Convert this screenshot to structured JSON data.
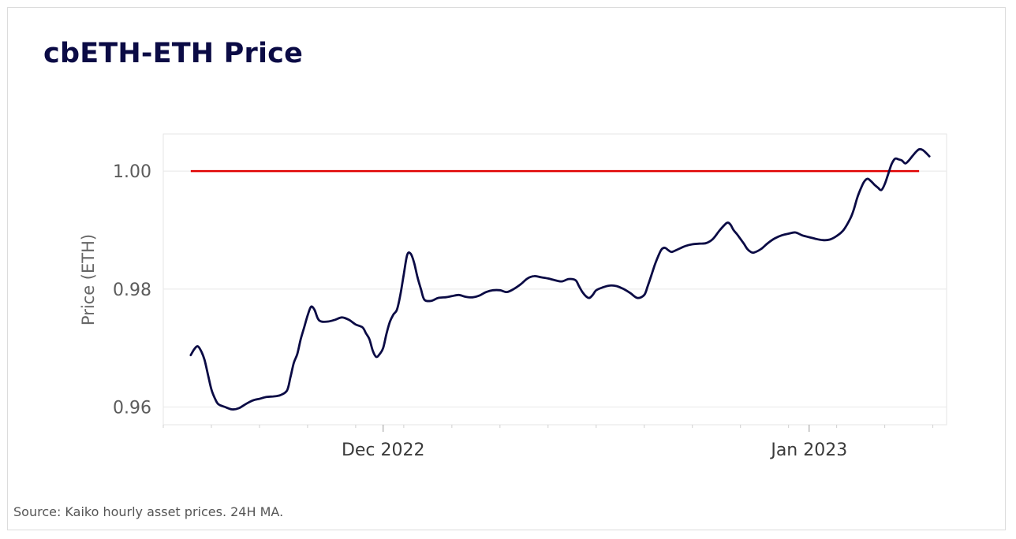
{
  "title": "cbETH-ETH Price",
  "source": "Source: Kaiko hourly asset prices. 24H MA.",
  "colors": {
    "series": "#0b0b45",
    "reference": "#e00000",
    "grid": "#e8e8e8",
    "title": "#0b0b45"
  },
  "chart_data": {
    "type": "line",
    "title": "cbETH-ETH Price",
    "xlabel": "",
    "ylabel": "Price (ETH)",
    "ylim": [
      0.957,
      1.0063
    ],
    "xlim": [
      "2022-11-15",
      "2023-01-11"
    ],
    "grid": true,
    "y_ticks": [
      {
        "value": 0.96,
        "label": "0.96"
      },
      {
        "value": 0.98,
        "label": "0.98"
      },
      {
        "value": 1.0,
        "label": "1.00"
      }
    ],
    "x_ticks": [
      {
        "date": "2022-12-01",
        "label": "Dec 2022"
      },
      {
        "date": "2023-01-01",
        "label": "Jan 2023"
      }
    ],
    "reference_line": {
      "value": 1.0,
      "x_start": "2022-11-17",
      "x_end": "2023-01-09",
      "color": "#e00000"
    },
    "series": [
      {
        "values": [
          [
            "2022-11-17T00:00",
            0.9688
          ],
          [
            "2022-11-17T06:00",
            0.9698
          ],
          [
            "2022-11-17T12:00",
            0.9703
          ],
          [
            "2022-11-17T18:00",
            0.9695
          ],
          [
            "2022-11-18T00:00",
            0.968
          ],
          [
            "2022-11-18T06:00",
            0.9655
          ],
          [
            "2022-11-18T12:00",
            0.963
          ],
          [
            "2022-11-18T18:00",
            0.9615
          ],
          [
            "2022-11-19T00:00",
            0.9605
          ],
          [
            "2022-11-19T12:00",
            0.96
          ],
          [
            "2022-11-20T00:00",
            0.9596
          ],
          [
            "2022-11-20T12:00",
            0.9598
          ],
          [
            "2022-11-21T00:00",
            0.9605
          ],
          [
            "2022-11-21T12:00",
            0.9611
          ],
          [
            "2022-11-22T00:00",
            0.9614
          ],
          [
            "2022-11-22T12:00",
            0.9617
          ],
          [
            "2022-11-23T00:00",
            0.9618
          ],
          [
            "2022-11-23T12:00",
            0.962
          ],
          [
            "2022-11-24T00:00",
            0.9628
          ],
          [
            "2022-11-24T06:00",
            0.965
          ],
          [
            "2022-11-24T12:00",
            0.9675
          ],
          [
            "2022-11-24T18:00",
            0.969
          ],
          [
            "2022-11-25T00:00",
            0.9715
          ],
          [
            "2022-11-25T06:00",
            0.9735
          ],
          [
            "2022-11-25T12:00",
            0.9755
          ],
          [
            "2022-11-25T18:00",
            0.977
          ],
          [
            "2022-11-26T00:00",
            0.9765
          ],
          [
            "2022-11-26T06:00",
            0.975
          ],
          [
            "2022-11-26T12:00",
            0.9745
          ],
          [
            "2022-11-27T00:00",
            0.9745
          ],
          [
            "2022-11-27T12:00",
            0.9748
          ],
          [
            "2022-11-28T00:00",
            0.9752
          ],
          [
            "2022-11-28T12:00",
            0.9748
          ],
          [
            "2022-11-29T00:00",
            0.974
          ],
          [
            "2022-11-29T12:00",
            0.9735
          ],
          [
            "2022-11-29T18:00",
            0.9725
          ],
          [
            "2022-11-30T00:00",
            0.9715
          ],
          [
            "2022-11-30T06:00",
            0.9695
          ],
          [
            "2022-11-30T12:00",
            0.9685
          ],
          [
            "2022-11-30T18:00",
            0.969
          ],
          [
            "2022-12-01T00:00",
            0.97
          ],
          [
            "2022-12-01T06:00",
            0.9725
          ],
          [
            "2022-12-01T12:00",
            0.9745
          ],
          [
            "2022-12-01T18:00",
            0.9757
          ],
          [
            "2022-12-02T00:00",
            0.9765
          ],
          [
            "2022-12-02T06:00",
            0.979
          ],
          [
            "2022-12-02T12:00",
            0.9825
          ],
          [
            "2022-12-02T18:00",
            0.9858
          ],
          [
            "2022-12-03T00:00",
            0.986
          ],
          [
            "2022-12-03T06:00",
            0.9845
          ],
          [
            "2022-12-03T12:00",
            0.982
          ],
          [
            "2022-12-03T18:00",
            0.98
          ],
          [
            "2022-12-04T00:00",
            0.9782
          ],
          [
            "2022-12-04T12:00",
            0.978
          ],
          [
            "2022-12-05T00:00",
            0.9785
          ],
          [
            "2022-12-05T12:00",
            0.9786
          ],
          [
            "2022-12-06T00:00",
            0.9788
          ],
          [
            "2022-12-06T12:00",
            0.979
          ],
          [
            "2022-12-07T00:00",
            0.9787
          ],
          [
            "2022-12-07T12:00",
            0.9786
          ],
          [
            "2022-12-08T00:00",
            0.9789
          ],
          [
            "2022-12-08T12:00",
            0.9795
          ],
          [
            "2022-12-09T00:00",
            0.9798
          ],
          [
            "2022-12-09T12:00",
            0.9798
          ],
          [
            "2022-12-10T00:00",
            0.9795
          ],
          [
            "2022-12-10T12:00",
            0.98
          ],
          [
            "2022-12-11T00:00",
            0.9808
          ],
          [
            "2022-12-11T12:00",
            0.9818
          ],
          [
            "2022-12-12T00:00",
            0.9822
          ],
          [
            "2022-12-12T12:00",
            0.982
          ],
          [
            "2022-12-13T00:00",
            0.9818
          ],
          [
            "2022-12-13T12:00",
            0.9815
          ],
          [
            "2022-12-14T00:00",
            0.9813
          ],
          [
            "2022-12-14T12:00",
            0.9817
          ],
          [
            "2022-12-15T00:00",
            0.9815
          ],
          [
            "2022-12-15T06:00",
            0.9805
          ],
          [
            "2022-12-15T12:00",
            0.9795
          ],
          [
            "2022-12-15T18:00",
            0.9788
          ],
          [
            "2022-12-16T00:00",
            0.9785
          ],
          [
            "2022-12-16T06:00",
            0.979
          ],
          [
            "2022-12-16T12:00",
            0.9798
          ],
          [
            "2022-12-17T00:00",
            0.9803
          ],
          [
            "2022-12-17T12:00",
            0.9806
          ],
          [
            "2022-12-18T00:00",
            0.9805
          ],
          [
            "2022-12-18T12:00",
            0.98
          ],
          [
            "2022-12-19T00:00",
            0.9793
          ],
          [
            "2022-12-19T12:00",
            0.9785
          ],
          [
            "2022-12-20T00:00",
            0.979
          ],
          [
            "2022-12-20T06:00",
            0.9805
          ],
          [
            "2022-12-20T12:00",
            0.9822
          ],
          [
            "2022-12-20T18:00",
            0.984
          ],
          [
            "2022-12-21T00:00",
            0.9855
          ],
          [
            "2022-12-21T06:00",
            0.9867
          ],
          [
            "2022-12-21T12:00",
            0.987
          ],
          [
            "2022-12-21T18:00",
            0.9866
          ],
          [
            "2022-12-22T00:00",
            0.9863
          ],
          [
            "2022-12-22T12:00",
            0.9868
          ],
          [
            "2022-12-23T00:00",
            0.9873
          ],
          [
            "2022-12-23T12:00",
            0.9876
          ],
          [
            "2022-12-24T00:00",
            0.9877
          ],
          [
            "2022-12-24T12:00",
            0.9878
          ],
          [
            "2022-12-25T00:00",
            0.9885
          ],
          [
            "2022-12-25T12:00",
            0.99
          ],
          [
            "2022-12-26T00:00",
            0.9912
          ],
          [
            "2022-12-26T06:00",
            0.991
          ],
          [
            "2022-12-26T12:00",
            0.99
          ],
          [
            "2022-12-26T18:00",
            0.9893
          ],
          [
            "2022-12-27T00:00",
            0.9885
          ],
          [
            "2022-12-27T06:00",
            0.9877
          ],
          [
            "2022-12-27T12:00",
            0.9868
          ],
          [
            "2022-12-27T18:00",
            0.9863
          ],
          [
            "2022-12-28T00:00",
            0.9862
          ],
          [
            "2022-12-28T12:00",
            0.9868
          ],
          [
            "2022-12-29T00:00",
            0.9878
          ],
          [
            "2022-12-29T12:00",
            0.9886
          ],
          [
            "2022-12-30T00:00",
            0.9891
          ],
          [
            "2022-12-30T12:00",
            0.9894
          ],
          [
            "2022-12-31T00:00",
            0.9896
          ],
          [
            "2022-12-31T12:00",
            0.9891
          ],
          [
            "2023-01-01T00:00",
            0.9888
          ],
          [
            "2023-01-01T12:00",
            0.9885
          ],
          [
            "2023-01-02T00:00",
            0.9883
          ],
          [
            "2023-01-02T12:00",
            0.9884
          ],
          [
            "2023-01-03T00:00",
            0.989
          ],
          [
            "2023-01-03T12:00",
            0.99
          ],
          [
            "2023-01-04T00:00",
            0.992
          ],
          [
            "2023-01-04T06:00",
            0.9935
          ],
          [
            "2023-01-04T12:00",
            0.9955
          ],
          [
            "2023-01-04T18:00",
            0.997
          ],
          [
            "2023-01-05T00:00",
            0.9982
          ],
          [
            "2023-01-05T06:00",
            0.9987
          ],
          [
            "2023-01-05T12:00",
            0.9983
          ],
          [
            "2023-01-05T18:00",
            0.9977
          ],
          [
            "2023-01-06T00:00",
            0.9972
          ],
          [
            "2023-01-06T06:00",
            0.9968
          ],
          [
            "2023-01-06T12:00",
            0.9978
          ],
          [
            "2023-01-06T18:00",
            0.9995
          ],
          [
            "2023-01-07T00:00",
            1.0012
          ],
          [
            "2023-01-07T06:00",
            1.0021
          ],
          [
            "2023-01-07T12:00",
            1.002
          ],
          [
            "2023-01-07T18:00",
            1.0018
          ],
          [
            "2023-01-08T00:00",
            1.0013
          ],
          [
            "2023-01-08T06:00",
            1.0018
          ],
          [
            "2023-01-08T12:00",
            1.0025
          ],
          [
            "2023-01-08T18:00",
            1.0032
          ],
          [
            "2023-01-09T00:00",
            1.0037
          ],
          [
            "2023-01-09T06:00",
            1.0036
          ],
          [
            "2023-01-09T12:00",
            1.0031
          ],
          [
            "2023-01-09T18:00",
            1.0025
          ]
        ]
      }
    ]
  }
}
